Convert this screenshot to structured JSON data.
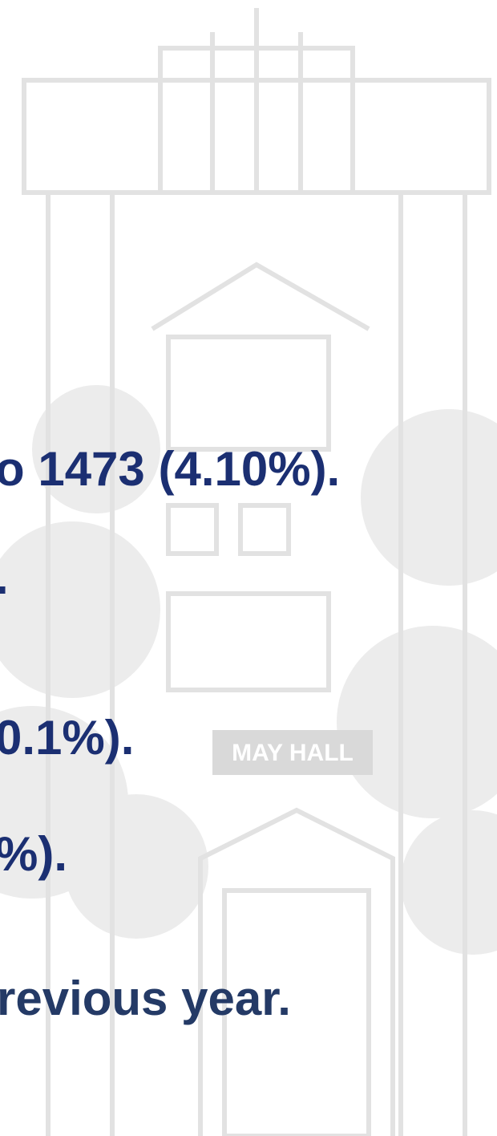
{
  "text_lines": [
    "o 1473 (4.10%).",
    ".",
    "0.1%).",
    "%).",
    "revious year."
  ],
  "sign": "MAY HALL"
}
